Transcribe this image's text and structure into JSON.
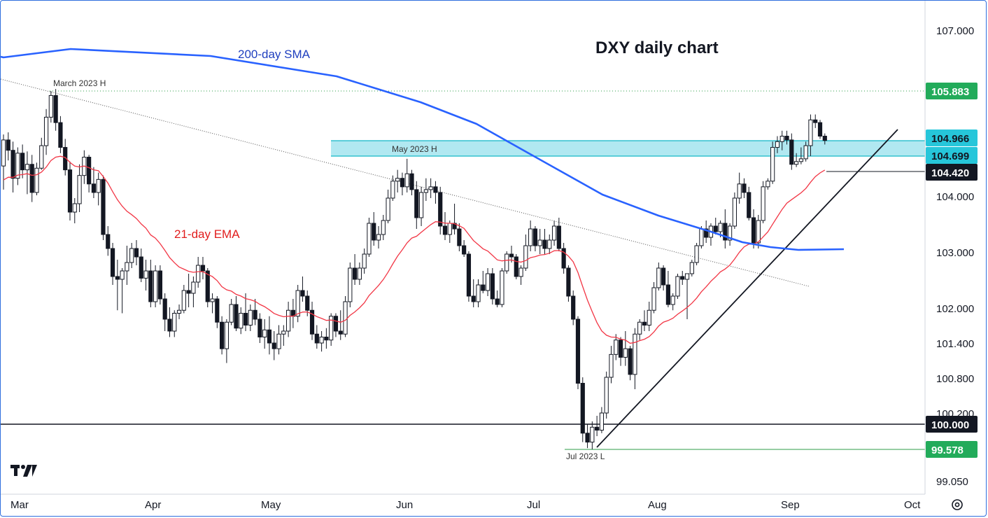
{
  "chart_data": {
    "type": "candlestick",
    "title": "DXY daily chart",
    "y_ticks": [
      "107.000",
      "104.000",
      "103.000",
      "102.000",
      "101.400",
      "100.800",
      "100.200",
      "99.050"
    ],
    "x_ticks": [
      "Mar",
      "Apr",
      "May",
      "Jun",
      "Jul",
      "Aug",
      "Sep",
      "Oct"
    ],
    "price_labels": [
      {
        "text": "105.883",
        "style": "green"
      },
      {
        "text": "104.966",
        "style": "cyan"
      },
      {
        "text": "104.699",
        "style": "cyan"
      },
      {
        "text": "104.420",
        "style": "black"
      },
      {
        "text": "100.000",
        "style": "black"
      },
      {
        "text": "99.578",
        "style": "green"
      }
    ],
    "annotations": {
      "march_high": "March 2023 H",
      "may_high": "May 2023 H",
      "jul_low": "Jul 2023 L",
      "sma": "200-day SMA",
      "ema": "21-day EMA"
    },
    "series": [
      {
        "name": "200-day SMA",
        "color": "#2962ff"
      },
      {
        "name": "21-day EMA",
        "color": "#f23645"
      }
    ],
    "levels": {
      "march_high": 105.883,
      "zone_top": 104.966,
      "zone_bottom": 104.699,
      "support": 104.42,
      "round": 100.0,
      "jul_low": 99.578
    },
    "candles": [
      {
        "o": 104.52,
        "h": 105.08,
        "l": 104.1,
        "c": 104.98
      },
      {
        "o": 104.98,
        "h": 105.12,
        "l": 104.62,
        "c": 104.8
      },
      {
        "o": 104.8,
        "h": 104.95,
        "l": 104.05,
        "c": 104.3
      },
      {
        "o": 104.3,
        "h": 104.85,
        "l": 104.18,
        "c": 104.75
      },
      {
        "o": 104.75,
        "h": 104.9,
        "l": 104.3,
        "c": 104.45
      },
      {
        "o": 104.45,
        "h": 104.78,
        "l": 104.02,
        "c": 104.55
      },
      {
        "o": 104.55,
        "h": 104.72,
        "l": 103.88,
        "c": 104.05
      },
      {
        "o": 104.05,
        "h": 104.58,
        "l": 104.0,
        "c": 104.48
      },
      {
        "o": 104.48,
        "h": 105.02,
        "l": 104.45,
        "c": 104.88
      },
      {
        "o": 104.88,
        "h": 105.55,
        "l": 104.72,
        "c": 105.4
      },
      {
        "o": 105.4,
        "h": 105.88,
        "l": 105.3,
        "c": 105.8
      },
      {
        "o": 105.8,
        "h": 105.92,
        "l": 105.15,
        "c": 105.3
      },
      {
        "o": 105.3,
        "h": 105.42,
        "l": 104.75,
        "c": 104.85
      },
      {
        "o": 104.85,
        "h": 105.0,
        "l": 104.35,
        "c": 104.45
      },
      {
        "o": 104.45,
        "h": 104.6,
        "l": 103.55,
        "c": 103.7
      },
      {
        "o": 103.7,
        "h": 103.95,
        "l": 103.5,
        "c": 103.85
      },
      {
        "o": 103.85,
        "h": 104.55,
        "l": 103.7,
        "c": 104.35
      },
      {
        "o": 104.35,
        "h": 104.8,
        "l": 104.2,
        "c": 104.68
      },
      {
        "o": 104.68,
        "h": 104.72,
        "l": 104.05,
        "c": 104.2
      },
      {
        "o": 104.2,
        "h": 104.5,
        "l": 103.95,
        "c": 104.05
      },
      {
        "o": 104.05,
        "h": 104.4,
        "l": 103.82,
        "c": 104.28
      },
      {
        "o": 104.28,
        "h": 104.35,
        "l": 103.2,
        "c": 103.3
      },
      {
        "o": 103.3,
        "h": 103.45,
        "l": 102.92,
        "c": 103.05
      },
      {
        "o": 103.05,
        "h": 103.15,
        "l": 102.4,
        "c": 102.55
      },
      {
        "o": 102.55,
        "h": 102.85,
        "l": 101.95,
        "c": 102.5
      },
      {
        "o": 102.5,
        "h": 102.7,
        "l": 101.9,
        "c": 102.65
      },
      {
        "o": 102.65,
        "h": 103.1,
        "l": 102.4,
        "c": 102.8
      },
      {
        "o": 102.8,
        "h": 103.15,
        "l": 102.7,
        "c": 103.05
      },
      {
        "o": 103.05,
        "h": 103.2,
        "l": 102.75,
        "c": 102.9
      },
      {
        "o": 102.9,
        "h": 103.05,
        "l": 102.45,
        "c": 102.52
      },
      {
        "o": 102.52,
        "h": 102.85,
        "l": 102.3,
        "c": 102.65
      },
      {
        "o": 102.65,
        "h": 102.85,
        "l": 102.0,
        "c": 102.1
      },
      {
        "o": 102.1,
        "h": 102.75,
        "l": 102.0,
        "c": 102.65
      },
      {
        "o": 102.65,
        "h": 102.75,
        "l": 102.05,
        "c": 102.15
      },
      {
        "o": 102.15,
        "h": 102.25,
        "l": 101.6,
        "c": 101.8
      },
      {
        "o": 101.8,
        "h": 102.0,
        "l": 101.5,
        "c": 101.6
      },
      {
        "o": 101.6,
        "h": 101.95,
        "l": 101.5,
        "c": 101.9
      },
      {
        "o": 101.9,
        "h": 102.05,
        "l": 101.8,
        "c": 101.95
      },
      {
        "o": 101.95,
        "h": 102.4,
        "l": 101.9,
        "c": 102.3
      },
      {
        "o": 102.3,
        "h": 102.6,
        "l": 102.0,
        "c": 102.25
      },
      {
        "o": 102.25,
        "h": 102.55,
        "l": 102.0,
        "c": 102.45
      },
      {
        "o": 102.45,
        "h": 102.9,
        "l": 102.35,
        "c": 102.75
      },
      {
        "o": 102.75,
        "h": 102.9,
        "l": 102.5,
        "c": 102.65
      },
      {
        "o": 102.65,
        "h": 102.7,
        "l": 102.0,
        "c": 102.1
      },
      {
        "o": 102.1,
        "h": 102.25,
        "l": 101.9,
        "c": 102.15
      },
      {
        "o": 102.15,
        "h": 102.2,
        "l": 101.65,
        "c": 101.75
      },
      {
        "o": 101.75,
        "h": 101.85,
        "l": 101.2,
        "c": 101.3
      },
      {
        "o": 101.3,
        "h": 101.8,
        "l": 101.05,
        "c": 101.75
      },
      {
        "o": 101.75,
        "h": 102.15,
        "l": 101.7,
        "c": 102.05
      },
      {
        "o": 102.05,
        "h": 102.2,
        "l": 101.6,
        "c": 101.65
      },
      {
        "o": 101.65,
        "h": 102.0,
        "l": 101.55,
        "c": 101.9
      },
      {
        "o": 101.9,
        "h": 102.25,
        "l": 101.6,
        "c": 101.7
      },
      {
        "o": 101.7,
        "h": 102.05,
        "l": 101.6,
        "c": 101.95
      },
      {
        "o": 101.95,
        "h": 102.15,
        "l": 101.7,
        "c": 101.8
      },
      {
        "o": 101.8,
        "h": 101.9,
        "l": 101.4,
        "c": 101.5
      },
      {
        "o": 101.5,
        "h": 101.8,
        "l": 101.3,
        "c": 101.62
      },
      {
        "o": 101.62,
        "h": 101.85,
        "l": 101.2,
        "c": 101.4
      },
      {
        "o": 101.4,
        "h": 101.6,
        "l": 101.1,
        "c": 101.3
      },
      {
        "o": 101.3,
        "h": 101.7,
        "l": 101.2,
        "c": 101.55
      },
      {
        "o": 101.55,
        "h": 101.7,
        "l": 101.35,
        "c": 101.6
      },
      {
        "o": 101.6,
        "h": 102.1,
        "l": 101.5,
        "c": 101.95
      },
      {
        "o": 101.95,
        "h": 102.15,
        "l": 101.65,
        "c": 101.85
      },
      {
        "o": 101.85,
        "h": 102.4,
        "l": 101.75,
        "c": 102.3
      },
      {
        "o": 102.3,
        "h": 102.55,
        "l": 102.1,
        "c": 102.2
      },
      {
        "o": 102.2,
        "h": 102.3,
        "l": 101.85,
        "c": 101.95
      },
      {
        "o": 101.95,
        "h": 102.1,
        "l": 101.45,
        "c": 101.55
      },
      {
        "o": 101.55,
        "h": 101.7,
        "l": 101.3,
        "c": 101.4
      },
      {
        "o": 101.4,
        "h": 101.6,
        "l": 101.25,
        "c": 101.5
      },
      {
        "o": 101.5,
        "h": 101.65,
        "l": 101.3,
        "c": 101.45
      },
      {
        "o": 101.45,
        "h": 101.9,
        "l": 101.35,
        "c": 101.85
      },
      {
        "o": 101.85,
        "h": 101.9,
        "l": 101.5,
        "c": 101.6
      },
      {
        "o": 101.6,
        "h": 101.95,
        "l": 101.45,
        "c": 101.55
      },
      {
        "o": 101.55,
        "h": 102.2,
        "l": 101.5,
        "c": 102.1
      },
      {
        "o": 102.1,
        "h": 102.8,
        "l": 102.0,
        "c": 102.7
      },
      {
        "o": 102.7,
        "h": 102.95,
        "l": 102.4,
        "c": 102.5
      },
      {
        "o": 102.5,
        "h": 102.8,
        "l": 102.4,
        "c": 102.7
      },
      {
        "o": 102.7,
        "h": 103.05,
        "l": 102.6,
        "c": 102.95
      },
      {
        "o": 102.95,
        "h": 103.6,
        "l": 102.9,
        "c": 103.5
      },
      {
        "o": 103.5,
        "h": 103.7,
        "l": 103.1,
        "c": 103.2
      },
      {
        "o": 103.2,
        "h": 103.45,
        "l": 103.05,
        "c": 103.3
      },
      {
        "o": 103.3,
        "h": 103.65,
        "l": 103.2,
        "c": 103.55
      },
      {
        "o": 103.55,
        "h": 104.1,
        "l": 103.5,
        "c": 103.95
      },
      {
        "o": 103.95,
        "h": 104.35,
        "l": 103.9,
        "c": 104.25
      },
      {
        "o": 104.25,
        "h": 104.45,
        "l": 104.05,
        "c": 104.3
      },
      {
        "o": 104.3,
        "h": 104.4,
        "l": 104.0,
        "c": 104.15
      },
      {
        "o": 104.15,
        "h": 104.65,
        "l": 104.05,
        "c": 104.38
      },
      {
        "o": 104.38,
        "h": 104.45,
        "l": 104.0,
        "c": 104.1
      },
      {
        "o": 104.1,
        "h": 104.25,
        "l": 103.4,
        "c": 103.6
      },
      {
        "o": 103.6,
        "h": 104.15,
        "l": 103.45,
        "c": 104.05
      },
      {
        "o": 104.05,
        "h": 104.3,
        "l": 103.9,
        "c": 104.1
      },
      {
        "o": 104.1,
        "h": 104.3,
        "l": 103.95,
        "c": 104.15
      },
      {
        "o": 104.15,
        "h": 104.25,
        "l": 103.85,
        "c": 104.05
      },
      {
        "o": 104.05,
        "h": 104.15,
        "l": 103.3,
        "c": 103.45
      },
      {
        "o": 103.45,
        "h": 103.7,
        "l": 103.2,
        "c": 103.3
      },
      {
        "o": 103.3,
        "h": 103.55,
        "l": 103.15,
        "c": 103.5
      },
      {
        "o": 103.5,
        "h": 103.85,
        "l": 103.3,
        "c": 103.4
      },
      {
        "o": 103.4,
        "h": 103.5,
        "l": 103.0,
        "c": 103.1
      },
      {
        "o": 103.1,
        "h": 103.2,
        "l": 102.9,
        "c": 102.95
      },
      {
        "o": 102.95,
        "h": 103.0,
        "l": 102.1,
        "c": 102.2
      },
      {
        "o": 102.2,
        "h": 102.5,
        "l": 102.0,
        "c": 102.1
      },
      {
        "o": 102.1,
        "h": 102.5,
        "l": 102.0,
        "c": 102.4
      },
      {
        "o": 102.4,
        "h": 102.65,
        "l": 102.25,
        "c": 102.3
      },
      {
        "o": 102.3,
        "h": 102.7,
        "l": 102.2,
        "c": 102.6
      },
      {
        "o": 102.6,
        "h": 102.7,
        "l": 102.05,
        "c": 102.15
      },
      {
        "o": 102.15,
        "h": 102.3,
        "l": 102.0,
        "c": 102.05
      },
      {
        "o": 102.05,
        "h": 102.7,
        "l": 102.0,
        "c": 102.65
      },
      {
        "o": 102.65,
        "h": 103.0,
        "l": 102.6,
        "c": 102.95
      },
      {
        "o": 102.95,
        "h": 103.1,
        "l": 102.8,
        "c": 102.9
      },
      {
        "o": 102.9,
        "h": 102.95,
        "l": 102.5,
        "c": 102.55
      },
      {
        "o": 102.55,
        "h": 102.75,
        "l": 102.4,
        "c": 102.7
      },
      {
        "o": 102.7,
        "h": 103.3,
        "l": 102.65,
        "c": 103.1
      },
      {
        "o": 103.1,
        "h": 103.55,
        "l": 103.0,
        "c": 103.4
      },
      {
        "o": 103.4,
        "h": 103.45,
        "l": 103.0,
        "c": 103.1
      },
      {
        "o": 103.1,
        "h": 103.4,
        "l": 102.95,
        "c": 103.2
      },
      {
        "o": 103.2,
        "h": 103.4,
        "l": 102.95,
        "c": 103.05
      },
      {
        "o": 103.05,
        "h": 103.3,
        "l": 102.95,
        "c": 103.2
      },
      {
        "o": 103.2,
        "h": 103.55,
        "l": 103.1,
        "c": 103.45
      },
      {
        "o": 103.45,
        "h": 103.6,
        "l": 103.0,
        "c": 103.05
      },
      {
        "o": 103.05,
        "h": 103.15,
        "l": 102.6,
        "c": 102.7
      },
      {
        "o": 102.7,
        "h": 102.75,
        "l": 102.1,
        "c": 102.2
      },
      {
        "o": 102.2,
        "h": 102.3,
        "l": 101.7,
        "c": 101.8
      },
      {
        "o": 101.8,
        "h": 101.85,
        "l": 100.6,
        "c": 100.7
      },
      {
        "o": 100.7,
        "h": 100.8,
        "l": 99.7,
        "c": 99.85
      },
      {
        "o": 99.85,
        "h": 100.0,
        "l": 99.6,
        "c": 99.7
      },
      {
        "o": 99.7,
        "h": 100.05,
        "l": 99.58,
        "c": 99.95
      },
      {
        "o": 99.95,
        "h": 100.15,
        "l": 99.8,
        "c": 99.9
      },
      {
        "o": 99.9,
        "h": 100.3,
        "l": 99.85,
        "c": 100.2
      },
      {
        "o": 100.2,
        "h": 100.9,
        "l": 100.1,
        "c": 100.8
      },
      {
        "o": 100.8,
        "h": 101.35,
        "l": 100.7,
        "c": 101.2
      },
      {
        "o": 101.2,
        "h": 101.55,
        "l": 101.1,
        "c": 101.45
      },
      {
        "o": 101.45,
        "h": 101.5,
        "l": 101.0,
        "c": 101.15
      },
      {
        "o": 101.15,
        "h": 101.6,
        "l": 101.0,
        "c": 101.3
      },
      {
        "o": 101.3,
        "h": 101.35,
        "l": 100.75,
        "c": 100.85
      },
      {
        "o": 100.85,
        "h": 101.65,
        "l": 100.6,
        "c": 101.55
      },
      {
        "o": 101.55,
        "h": 101.8,
        "l": 101.45,
        "c": 101.75
      },
      {
        "o": 101.75,
        "h": 101.95,
        "l": 101.6,
        "c": 101.7
      },
      {
        "o": 101.7,
        "h": 102.1,
        "l": 101.6,
        "c": 101.95
      },
      {
        "o": 101.95,
        "h": 102.45,
        "l": 101.9,
        "c": 102.35
      },
      {
        "o": 102.35,
        "h": 102.8,
        "l": 102.3,
        "c": 102.7
      },
      {
        "o": 102.7,
        "h": 102.75,
        "l": 102.3,
        "c": 102.4
      },
      {
        "o": 102.4,
        "h": 102.65,
        "l": 102.0,
        "c": 102.05
      },
      {
        "o": 102.05,
        "h": 102.25,
        "l": 101.95,
        "c": 102.2
      },
      {
        "o": 102.2,
        "h": 102.6,
        "l": 102.15,
        "c": 102.55
      },
      {
        "o": 102.55,
        "h": 102.65,
        "l": 102.4,
        "c": 102.5
      },
      {
        "o": 102.5,
        "h": 102.6,
        "l": 101.8,
        "c": 102.6
      },
      {
        "o": 102.6,
        "h": 102.85,
        "l": 102.55,
        "c": 102.8
      },
      {
        "o": 102.8,
        "h": 103.15,
        "l": 102.75,
        "c": 103.1
      },
      {
        "o": 103.1,
        "h": 103.45,
        "l": 103.05,
        "c": 103.4
      },
      {
        "o": 103.4,
        "h": 103.55,
        "l": 103.15,
        "c": 103.25
      },
      {
        "o": 103.25,
        "h": 103.5,
        "l": 103.1,
        "c": 103.45
      },
      {
        "o": 103.45,
        "h": 103.6,
        "l": 103.3,
        "c": 103.35
      },
      {
        "o": 103.35,
        "h": 103.55,
        "l": 103.25,
        "c": 103.5
      },
      {
        "o": 103.5,
        "h": 103.75,
        "l": 103.05,
        "c": 103.2
      },
      {
        "o": 103.2,
        "h": 103.5,
        "l": 103.1,
        "c": 103.45
      },
      {
        "o": 103.45,
        "h": 104.05,
        "l": 103.4,
        "c": 103.95
      },
      {
        "o": 103.95,
        "h": 104.4,
        "l": 103.85,
        "c": 104.2
      },
      {
        "o": 104.2,
        "h": 104.3,
        "l": 103.95,
        "c": 104.05
      },
      {
        "o": 104.05,
        "h": 104.15,
        "l": 103.55,
        "c": 103.6
      },
      {
        "o": 103.6,
        "h": 103.75,
        "l": 103.05,
        "c": 103.15
      },
      {
        "o": 103.15,
        "h": 103.65,
        "l": 103.05,
        "c": 103.55
      },
      {
        "o": 103.55,
        "h": 104.25,
        "l": 103.5,
        "c": 104.15
      },
      {
        "o": 104.15,
        "h": 104.3,
        "l": 104.1,
        "c": 104.25
      },
      {
        "o": 104.25,
        "h": 104.95,
        "l": 104.2,
        "c": 104.85
      },
      {
        "o": 104.85,
        "h": 105.05,
        "l": 104.75,
        "c": 104.95
      },
      {
        "o": 104.95,
        "h": 105.15,
        "l": 104.8,
        "c": 105.05
      },
      {
        "o": 105.05,
        "h": 105.15,
        "l": 104.9,
        "c": 104.98
      },
      {
        "o": 104.98,
        "h": 105.1,
        "l": 104.45,
        "c": 104.55
      },
      {
        "o": 104.55,
        "h": 104.75,
        "l": 104.5,
        "c": 104.6
      },
      {
        "o": 104.6,
        "h": 104.85,
        "l": 104.55,
        "c": 104.65
      },
      {
        "o": 104.65,
        "h": 104.95,
        "l": 104.6,
        "c": 104.88
      },
      {
        "o": 104.88,
        "h": 105.45,
        "l": 104.7,
        "c": 105.35
      },
      {
        "o": 105.35,
        "h": 105.45,
        "l": 105.2,
        "c": 105.3
      },
      {
        "o": 105.3,
        "h": 105.35,
        "l": 105.0,
        "c": 105.05
      },
      {
        "o": 105.05,
        "h": 105.1,
        "l": 104.9,
        "c": 104.97
      }
    ]
  }
}
